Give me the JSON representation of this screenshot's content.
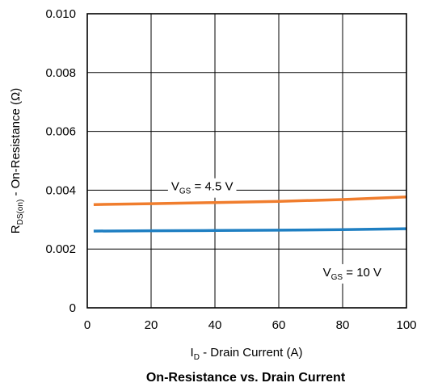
{
  "chart_data": {
    "type": "line",
    "title": "On-Resistance vs. Drain Current",
    "xlabel": {
      "main": "I",
      "sub": "D",
      "rest": " - Drain Current (A)"
    },
    "ylabel": {
      "main": "R",
      "sub": "DS(on)",
      "rest": " - On-Resistance (Ω)"
    },
    "xlim": [
      0,
      100
    ],
    "ylim": [
      0,
      0.01
    ],
    "x_ticks": [
      "0",
      "20",
      "40",
      "60",
      "80",
      "100"
    ],
    "y_ticks": [
      "0",
      "0.002",
      "0.004",
      "0.006",
      "0.008",
      "0.010"
    ],
    "grid": true,
    "series": [
      {
        "color": "#f07d2d",
        "x": [
          2,
          20,
          40,
          60,
          80,
          100
        ],
        "y": [
          0.00351,
          0.00354,
          0.00358,
          0.00362,
          0.00368,
          0.00377
        ]
      },
      {
        "color": "#1f7fc2",
        "x": [
          2,
          20,
          40,
          60,
          80,
          100
        ],
        "y": [
          0.00261,
          0.00262,
          0.00263,
          0.00264,
          0.00266,
          0.00269
        ]
      }
    ],
    "annotations": [
      {
        "main": "V",
        "sub": "GS",
        "rest": " = 4.5 V",
        "x": 36,
        "y": 0.00413
      },
      {
        "main": "V",
        "sub": "GS",
        "rest": " = 10 V",
        "x": 83,
        "y": 0.00121
      }
    ]
  }
}
